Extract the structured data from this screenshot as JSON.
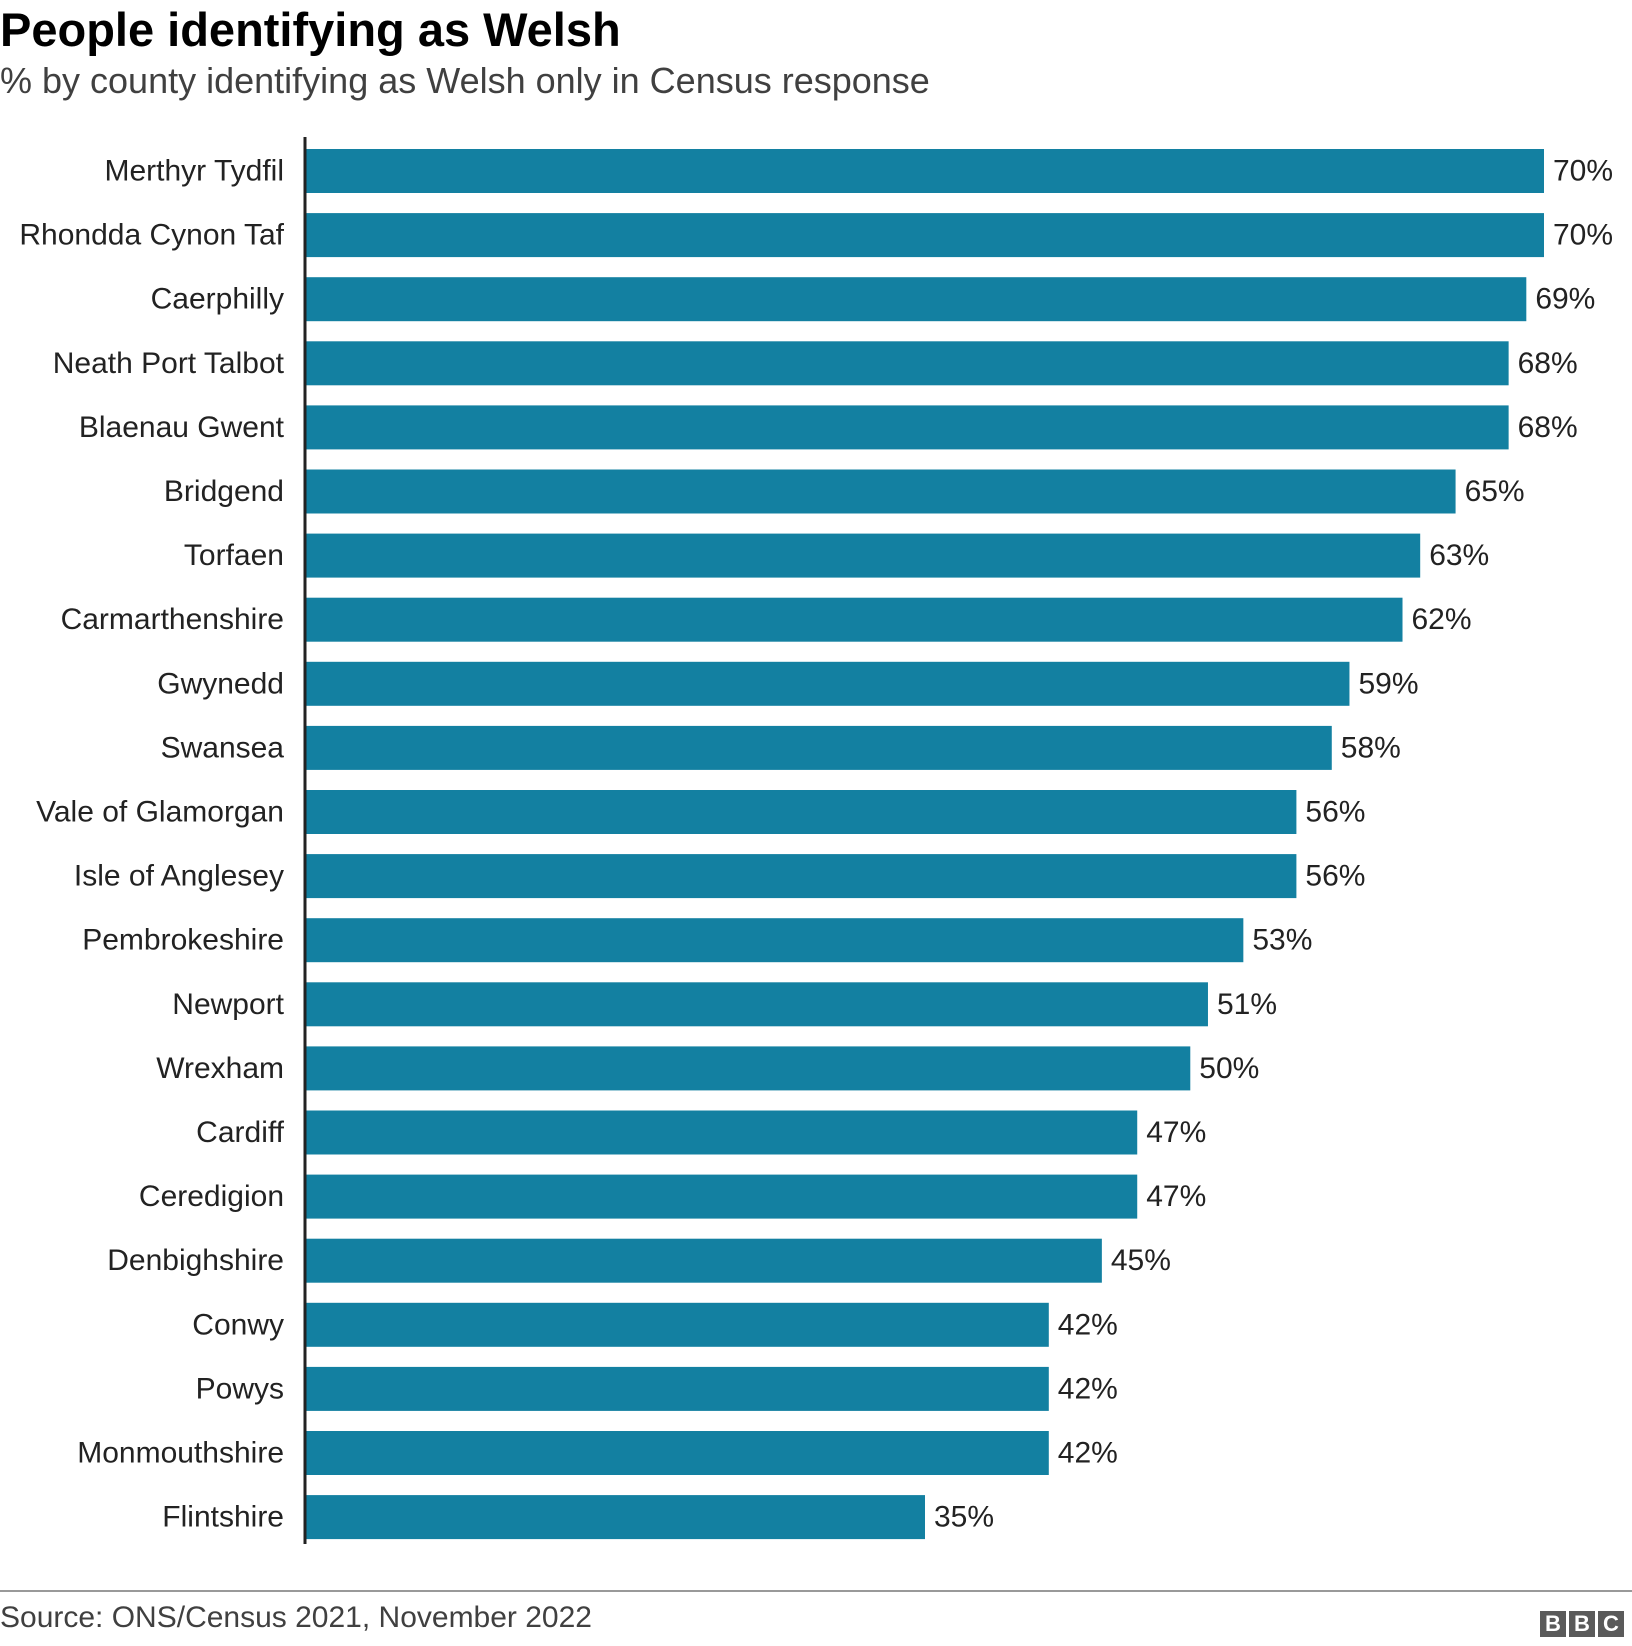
{
  "chart_data": {
    "type": "bar",
    "orientation": "horizontal",
    "title": "People identifying as Welsh",
    "subtitle": "% by county identifying as Welsh only in Census response",
    "categories": [
      "Merthyr Tydfil",
      "Rhondda Cynon Taf",
      "Caerphilly",
      "Neath Port Talbot",
      "Blaenau Gwent",
      "Bridgend",
      "Torfaen",
      "Carmarthenshire",
      "Gwynedd",
      "Swansea",
      "Vale of Glamorgan",
      "Isle of Anglesey",
      "Pembrokeshire",
      "Newport",
      "Wrexham",
      "Cardiff",
      "Ceredigion",
      "Denbighshire",
      "Conwy",
      "Powys",
      "Monmouthshire",
      "Flintshire"
    ],
    "values": [
      70,
      70,
      69,
      68,
      68,
      65,
      63,
      62,
      59,
      58,
      56,
      56,
      53,
      51,
      50,
      47,
      47,
      45,
      42,
      42,
      42,
      35
    ],
    "value_labels": [
      "70%",
      "70%",
      "69%",
      "68%",
      "68%",
      "65%",
      "63%",
      "62%",
      "59%",
      "58%",
      "56%",
      "56%",
      "53%",
      "51%",
      "50%",
      "47%",
      "47%",
      "45%",
      "42%",
      "42%",
      "42%",
      "35%"
    ],
    "xlim": [
      0,
      70
    ],
    "grid": false,
    "bar_color": "#1380A1",
    "source": "Source: ONS/Census 2021, November 2022"
  },
  "footer": {
    "source": "Source: ONS/Census 2021, November 2022",
    "logo_letters": [
      "B",
      "B",
      "C"
    ]
  }
}
